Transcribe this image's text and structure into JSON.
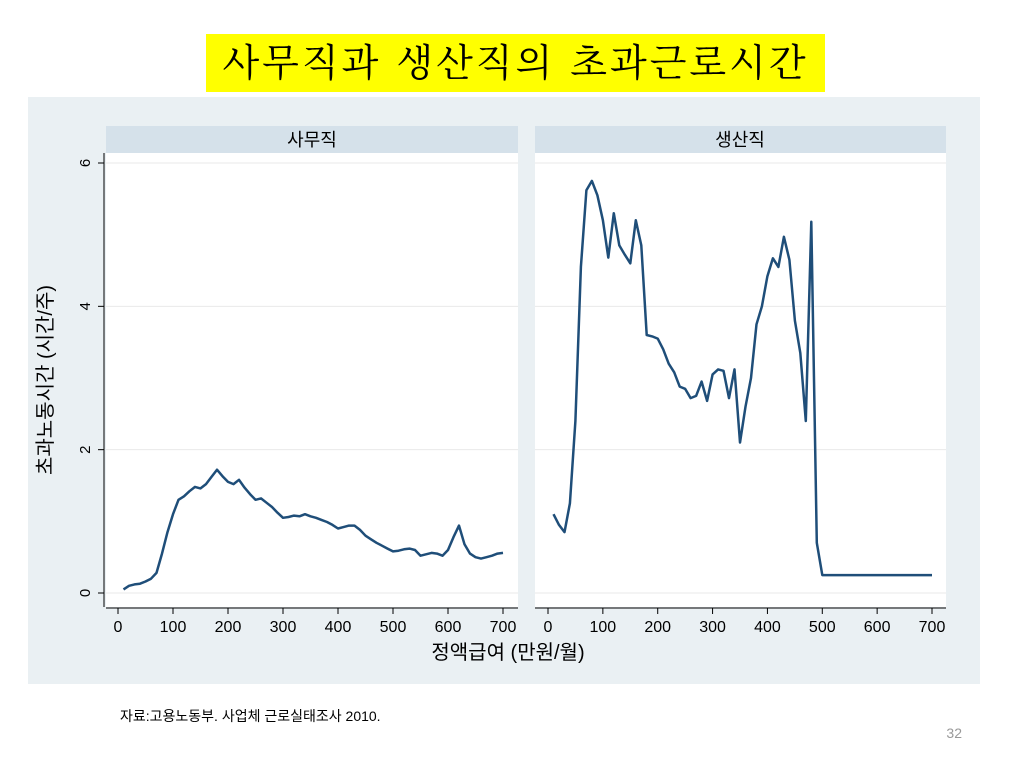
{
  "slide": {
    "title": "사무직과 생산직의 초과근로시간",
    "source": "자료:고용노동부. 사업체 근로실태조사 2010.",
    "page_number": "32"
  },
  "colors": {
    "title_background": "#ffff00",
    "plot_background": "#eaf0f3",
    "panel_header": "#d5e1ea",
    "line": "#1f4e79",
    "grid": "#eaeaea"
  },
  "chart_data": {
    "type": "line",
    "xlabel": "정액급여 (만원/월)",
    "ylabel": "초과노동시간 (시간/주)",
    "xlim": [
      0,
      700
    ],
    "ylim": [
      0,
      6
    ],
    "xticks": [
      0,
      100,
      200,
      300,
      400,
      500,
      600,
      700
    ],
    "yticks": [
      0,
      2,
      4,
      6
    ],
    "grid": true,
    "panels": [
      {
        "title": "사무직",
        "x": [
          10,
          20,
          30,
          40,
          50,
          60,
          70,
          80,
          90,
          100,
          110,
          120,
          130,
          140,
          150,
          160,
          170,
          180,
          190,
          200,
          210,
          220,
          230,
          240,
          250,
          260,
          270,
          280,
          290,
          300,
          310,
          320,
          330,
          340,
          350,
          360,
          370,
          380,
          390,
          400,
          410,
          420,
          430,
          440,
          450,
          460,
          470,
          480,
          490,
          500,
          510,
          520,
          530,
          540,
          550,
          560,
          570,
          580,
          590,
          600,
          610,
          620,
          630,
          640,
          650,
          660,
          670,
          680,
          690,
          700
        ],
        "y": [
          0.05,
          0.1,
          0.12,
          0.13,
          0.16,
          0.2,
          0.28,
          0.55,
          0.85,
          1.1,
          1.3,
          1.35,
          1.42,
          1.48,
          1.46,
          1.52,
          1.62,
          1.72,
          1.63,
          1.55,
          1.52,
          1.58,
          1.47,
          1.38,
          1.3,
          1.32,
          1.26,
          1.2,
          1.12,
          1.05,
          1.06,
          1.08,
          1.07,
          1.1,
          1.07,
          1.05,
          1.02,
          0.99,
          0.95,
          0.9,
          0.92,
          0.94,
          0.94,
          0.88,
          0.8,
          0.75,
          0.7,
          0.66,
          0.62,
          0.58,
          0.59,
          0.61,
          0.62,
          0.6,
          0.52,
          0.54,
          0.56,
          0.55,
          0.52,
          0.6,
          0.78,
          0.94,
          0.68,
          0.55,
          0.5,
          0.48,
          0.5,
          0.52,
          0.55,
          0.56
        ]
      },
      {
        "title": "생산직",
        "x": [
          10,
          20,
          30,
          40,
          50,
          60,
          70,
          80,
          90,
          100,
          110,
          120,
          130,
          140,
          150,
          160,
          170,
          180,
          190,
          200,
          210,
          220,
          230,
          240,
          250,
          260,
          270,
          280,
          290,
          300,
          310,
          320,
          330,
          340,
          350,
          360,
          370,
          380,
          390,
          400,
          410,
          420,
          430,
          440,
          450,
          460,
          470,
          480,
          490,
          500,
          510,
          520,
          530,
          540,
          550,
          560,
          570,
          580,
          590,
          600,
          610,
          620,
          630,
          640,
          650,
          660,
          670,
          680,
          690,
          700
        ],
        "y": [
          1.1,
          0.95,
          0.85,
          1.25,
          2.4,
          4.55,
          5.62,
          5.75,
          5.55,
          5.2,
          4.68,
          5.3,
          4.85,
          4.72,
          4.6,
          5.2,
          4.85,
          3.6,
          3.58,
          3.55,
          3.4,
          3.2,
          3.08,
          2.88,
          2.85,
          2.72,
          2.75,
          2.95,
          2.68,
          3.05,
          3.12,
          3.1,
          2.72,
          3.12,
          2.1,
          2.6,
          3.0,
          3.75,
          4.0,
          4.42,
          4.67,
          4.55,
          4.97,
          4.65,
          3.8,
          3.35,
          2.4,
          5.18,
          0.7,
          0.25,
          0.25,
          0.25,
          0.25,
          0.25,
          0.25,
          0.25,
          0.25,
          0.25,
          0.25,
          0.25,
          0.25,
          0.25,
          0.25,
          0.25,
          0.25,
          0.25,
          0.25,
          0.25,
          0.25,
          0.25
        ]
      }
    ]
  }
}
